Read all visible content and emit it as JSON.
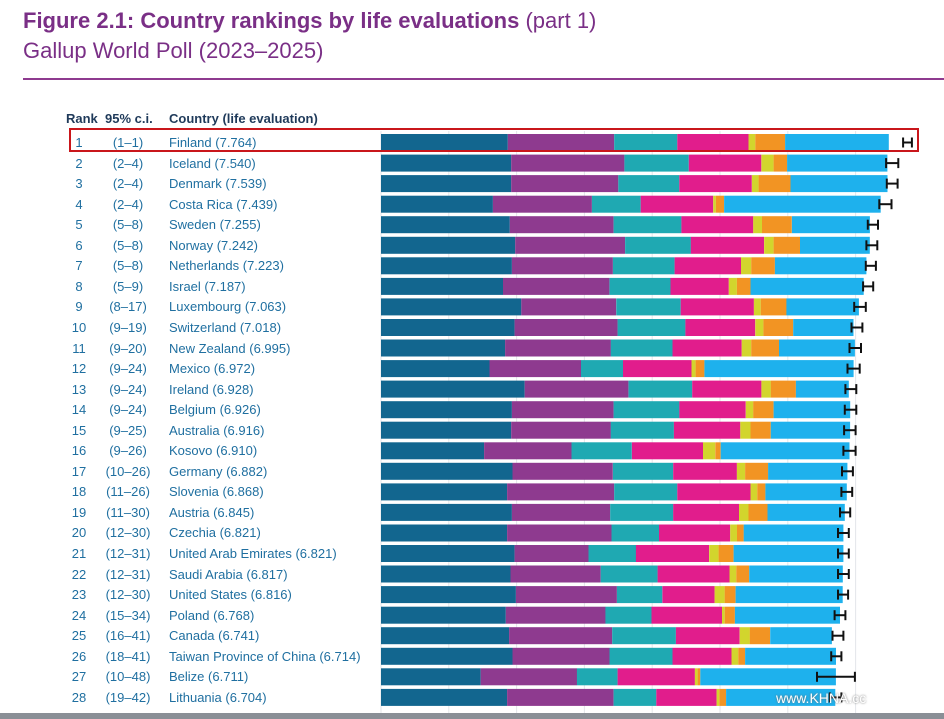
{
  "figure": {
    "title": "Figure 2.1: Country rankings by life evaluations",
    "title_part": "(part 1)",
    "subtitle": "Gallup World Poll (2023–2025)"
  },
  "headers": {
    "rank": "Rank",
    "ci": "95% c.i.",
    "country": "Country (life evaluation)"
  },
  "watermark": "www.KHNA.cc",
  "colors": {
    "title": "#7a2f86",
    "text": "#1f6fa0",
    "highlight": "#c9161b",
    "segments": [
      "#12668f",
      "#8e3a8f",
      "#1fa9b2",
      "#e11d8c",
      "#d2d52d",
      "#f29423",
      "#1eb1ed"
    ]
  },
  "chart_data": {
    "type": "bar",
    "stacked": true,
    "orientation": "horizontal",
    "title": "Figure 2.1: Country rankings by life evaluations (part 1)",
    "subtitle": "Gallup World Poll (2023–2025)",
    "highlighted": "Finland",
    "segment_order": [
      "dystopia_residual",
      "gdp",
      "social_support",
      "healthy_life",
      "freedom",
      "generosity",
      "corruption"
    ],
    "segment_colors": [
      "#12668f",
      "#8e3a8f",
      "#1fa9b2",
      "#e11d8c",
      "#d2d52d",
      "#f29423",
      "#1eb1ed"
    ],
    "rows": [
      {
        "rank": "1",
        "ci": "(1–1)",
        "country": "Finland",
        "value": "7.764",
        "segments": [
          1.87,
          1.57,
          0.93,
          1.05,
          0.1,
          0.44,
          1.53
        ],
        "ci_low": 7.7,
        "ci_high": 7.83
      },
      {
        "rank": "2",
        "ci": "(2–4)",
        "country": "Iceland",
        "value": "7.540",
        "segments": [
          1.92,
          1.67,
          0.95,
          1.07,
          0.18,
          0.2,
          1.48
        ],
        "ci_low": 7.45,
        "ci_high": 7.63
      },
      {
        "rank": "3",
        "ci": "(2–4)",
        "country": "Denmark",
        "value": "7.539",
        "segments": [
          1.92,
          1.58,
          0.9,
          1.07,
          0.1,
          0.47,
          1.43
        ],
        "ci_low": 7.46,
        "ci_high": 7.62
      },
      {
        "rank": "4",
        "ci": "(2–4)",
        "country": "Costa Rica",
        "value": "7.439",
        "segments": [
          1.65,
          1.46,
          0.72,
          1.07,
          0.04,
          0.12,
          2.31
        ],
        "ci_low": 7.35,
        "ci_high": 7.53
      },
      {
        "rank": "5",
        "ci": "(5–8)",
        "country": "Sweden",
        "value": "7.255",
        "segments": [
          1.9,
          1.53,
          1.0,
          1.06,
          0.13,
          0.44,
          1.15
        ],
        "ci_low": 7.18,
        "ci_high": 7.33
      },
      {
        "rank": "6",
        "ci": "(5–8)",
        "country": "Norway",
        "value": "7.242",
        "segments": [
          1.98,
          1.62,
          0.97,
          1.08,
          0.14,
          0.39,
          1.03
        ],
        "ci_low": 7.16,
        "ci_high": 7.32
      },
      {
        "rank": "7",
        "ci": "(5–8)",
        "country": "Netherlands",
        "value": "7.223",
        "segments": [
          1.93,
          1.49,
          0.91,
          0.98,
          0.15,
          0.35,
          1.35
        ],
        "ci_low": 7.15,
        "ci_high": 7.3
      },
      {
        "rank": "8",
        "ci": "(5–9)",
        "country": "Israel",
        "value": "7.187",
        "segments": [
          1.8,
          1.57,
          0.9,
          0.86,
          0.12,
          0.2,
          1.67
        ],
        "ci_low": 7.11,
        "ci_high": 7.26
      },
      {
        "rank": "9",
        "ci": "(8–17)",
        "country": "Luxembourg",
        "value": "7.063",
        "segments": [
          2.07,
          1.4,
          0.95,
          1.08,
          0.1,
          0.38,
          1.07
        ],
        "ci_low": 6.98,
        "ci_high": 7.15
      },
      {
        "rank": "10",
        "ci": "(9–19)",
        "country": "Switzerland",
        "value": "7.018",
        "segments": [
          1.97,
          1.52,
          1.0,
          1.03,
          0.12,
          0.44,
          0.89
        ],
        "ci_low": 6.94,
        "ci_high": 7.1
      },
      {
        "rank": "11",
        "ci": "(9–20)",
        "country": "New Zealand",
        "value": "6.995",
        "segments": [
          1.83,
          1.56,
          0.91,
          1.02,
          0.14,
          0.41,
          1.12
        ],
        "ci_low": 6.91,
        "ci_high": 7.08
      },
      {
        "rank": "12",
        "ci": "(9–24)",
        "country": "Mexico",
        "value": "6.972",
        "segments": [
          1.6,
          1.35,
          0.62,
          1.01,
          0.06,
          0.13,
          2.2
        ],
        "ci_low": 6.88,
        "ci_high": 7.06
      },
      {
        "rank": "13",
        "ci": "(9–24)",
        "country": "Ireland",
        "value": "6.928",
        "segments": [
          2.12,
          1.53,
          0.94,
          1.02,
          0.14,
          0.37,
          0.78
        ],
        "ci_low": 6.85,
        "ci_high": 7.01
      },
      {
        "rank": "14",
        "ci": "(9–24)",
        "country": "Belgium",
        "value": "6.926",
        "segments": [
          1.93,
          1.5,
          0.97,
          0.98,
          0.11,
          0.3,
          1.13
        ],
        "ci_low": 6.84,
        "ci_high": 7.01
      },
      {
        "rank": "15",
        "ci": "(9–25)",
        "country": "Australia",
        "value": "6.916",
        "segments": [
          1.92,
          1.47,
          0.93,
          0.98,
          0.15,
          0.3,
          1.17
        ],
        "ci_low": 6.83,
        "ci_high": 7.0
      },
      {
        "rank": "16",
        "ci": "(9–26)",
        "country": "Kosovo",
        "value": "6.910",
        "segments": [
          1.52,
          1.29,
          0.89,
          1.05,
          0.18,
          0.08,
          1.9
        ],
        "ci_low": 6.82,
        "ci_high": 7.0
      },
      {
        "rank": "17",
        "ci": "(10–26)",
        "country": "Germany",
        "value": "6.882",
        "segments": [
          1.94,
          1.48,
          0.89,
          0.94,
          0.12,
          0.34,
          1.17
        ],
        "ci_low": 6.8,
        "ci_high": 6.96
      },
      {
        "rank": "18",
        "ci": "(11–26)",
        "country": "Slovenia",
        "value": "6.868",
        "segments": [
          1.86,
          1.58,
          0.93,
          1.08,
          0.1,
          0.12,
          1.2
        ],
        "ci_low": 6.79,
        "ci_high": 6.95
      },
      {
        "rank": "19",
        "ci": "(11–30)",
        "country": "Austria",
        "value": "6.845",
        "segments": [
          1.93,
          1.45,
          0.93,
          0.97,
          0.14,
          0.28,
          1.14
        ],
        "ci_low": 6.77,
        "ci_high": 6.92
      },
      {
        "rank": "20",
        "ci": "(12–30)",
        "country": "Czechia",
        "value": "6.821",
        "segments": [
          1.86,
          1.54,
          0.7,
          1.05,
          0.1,
          0.1,
          1.47
        ],
        "ci_low": 6.74,
        "ci_high": 6.9
      },
      {
        "rank": "21",
        "ci": "(12–31)",
        "country": "United Arab Emirates",
        "value": "6.821",
        "segments": [
          1.97,
          1.09,
          0.7,
          1.08,
          0.14,
          0.22,
          1.62
        ],
        "ci_low": 6.74,
        "ci_high": 6.9
      },
      {
        "rank": "22",
        "ci": "(12–31)",
        "country": "Saudi Arabia",
        "value": "6.817",
        "segments": [
          1.91,
          1.33,
          0.84,
          1.06,
          0.1,
          0.19,
          1.38
        ],
        "ci_low": 6.74,
        "ci_high": 6.9
      },
      {
        "rank": "23",
        "ci": "(12–30)",
        "country": "United States",
        "value": "6.816",
        "segments": [
          1.99,
          1.49,
          0.67,
          0.77,
          0.15,
          0.16,
          1.58
        ],
        "ci_low": 6.74,
        "ci_high": 6.89
      },
      {
        "rank": "24",
        "ci": "(15–34)",
        "country": "Poland",
        "value": "6.768",
        "segments": [
          1.84,
          1.47,
          0.68,
          1.04,
          0.04,
          0.15,
          1.55
        ],
        "ci_low": 6.69,
        "ci_high": 6.85
      },
      {
        "rank": "25",
        "ci": "(16–41)",
        "country": "Canada",
        "value": "6.741",
        "segments": [
          1.89,
          1.52,
          0.94,
          0.94,
          0.15,
          0.3,
          0.91
        ],
        "ci_low": 6.66,
        "ci_high": 6.82
      },
      {
        "rank": "26",
        "ci": "(18–41)",
        "country": "Taiwan Province of China",
        "value": "6.714",
        "segments": [
          1.94,
          1.43,
          0.93,
          0.87,
          0.1,
          0.1,
          1.34
        ],
        "ci_low": 6.64,
        "ci_high": 6.79
      },
      {
        "rank": "27",
        "ci": "(10–48)",
        "country": "Belize",
        "value": "6.711",
        "segments": [
          1.47,
          1.42,
          0.6,
          1.14,
          0.04,
          0.04,
          2.0
        ],
        "ci_low": 6.43,
        "ci_high": 6.99
      },
      {
        "rank": "28",
        "ci": "(19–42)",
        "country": "Lithuania",
        "value": "6.704",
        "segments": [
          1.86,
          1.57,
          0.63,
          0.89,
          0.04,
          0.1,
          1.61
        ],
        "ci_low": 6.62,
        "ci_high": 6.79
      }
    ]
  }
}
